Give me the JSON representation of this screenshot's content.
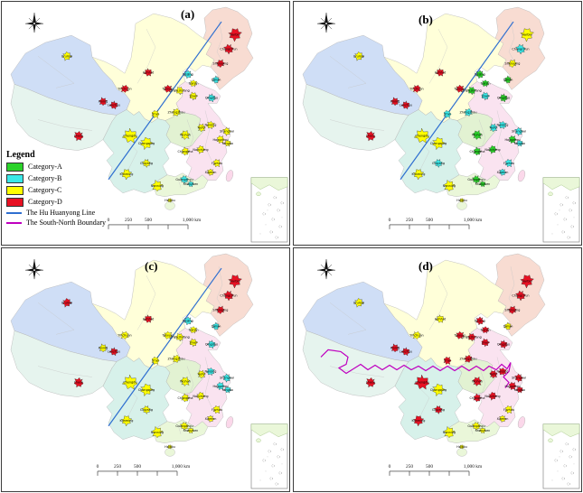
{
  "panels": [
    {
      "id": "a",
      "label": "(a)",
      "boundary_line": "hu_huanyong",
      "cities": {
        "Urumqi": "C",
        "Lhasa": "D",
        "Xining": "D",
        "Lanzhou": "D",
        "Yinchuan": "D",
        "Hohhot": "D",
        "Harbin": "D",
        "Changchun": "D",
        "Shenyang": "D",
        "Dalian": "B",
        "Beijing": "B",
        "Tianjin": "C",
        "Shijiazhuang": "C",
        "Taiyuan": "D",
        "Jinan": "C",
        "Qingdao": "B",
        "Zhengzhou": "C",
        "Xi'an": "C",
        "Chengdu": "C",
        "Chongqing": "C",
        "Wuhan": "C",
        "Hefei": "C",
        "Nanjing": "C",
        "Shanghai": "C",
        "Hangzhou": "C",
        "Ningbo": "C",
        "Nanchang": "C",
        "Changsha": "C",
        "Guiyang": "C",
        "Kunming": "C",
        "Nanning": "C",
        "Guangzhou": "B",
        "Shenzhen": "B",
        "Fuzhou": "C",
        "Xiamen": "C",
        "Haikou": "C"
      }
    },
    {
      "id": "b",
      "label": "(b)",
      "boundary_line": "hu_huanyong",
      "cities": {
        "Urumqi": "C",
        "Lhasa": "D",
        "Xining": "D",
        "Lanzhou": "D",
        "Yinchuan": "D",
        "Hohhot": "D",
        "Harbin": "C",
        "Changchun": "B",
        "Shenyang": "C",
        "Dalian": "A",
        "Beijing": "A",
        "Tianjin": "A",
        "Shijiazhuang": "A",
        "Taiyuan": "D",
        "Jinan": "B",
        "Qingdao": "A",
        "Zhengzhou": "B",
        "Xi'an": "B",
        "Chengdu": "C",
        "Chongqing": "C",
        "Wuhan": "A",
        "Hefei": "B",
        "Nanjing": "B",
        "Shanghai": "B",
        "Hangzhou": "A",
        "Ningbo": "B",
        "Nanchang": "A",
        "Changsha": "A",
        "Guiyang": "B",
        "Kunming": "C",
        "Nanning": "C",
        "Guangzhou": "A",
        "Shenzhen": "A",
        "Fuzhou": "B",
        "Xiamen": "B",
        "Haikou": "C"
      }
    },
    {
      "id": "c",
      "label": "(c)",
      "boundary_line": "hu_huanyong",
      "cities": {
        "Urumqi": "D",
        "Lhasa": "D",
        "Xining": "C",
        "Lanzhou": "D",
        "Yinchuan": "C",
        "Hohhot": "D",
        "Harbin": "D",
        "Changchun": "D",
        "Shenyang": "D",
        "Dalian": "B",
        "Beijing": "B",
        "Tianjin": "C",
        "Shijiazhuang": "C",
        "Taiyuan": "C",
        "Jinan": "C",
        "Qingdao": "B",
        "Zhengzhou": "C",
        "Xi'an": "C",
        "Chengdu": "C",
        "Chongqing": "C",
        "Wuhan": "C",
        "Hefei": "C",
        "Nanjing": "B",
        "Shanghai": "B",
        "Hangzhou": "B",
        "Ningbo": "B",
        "Nanchang": "C",
        "Changsha": "C",
        "Guiyang": "C",
        "Kunming": "C",
        "Nanning": "C",
        "Guangzhou": "C",
        "Shenzhen": "C",
        "Fuzhou": "C",
        "Xiamen": "C",
        "Haikou": "C"
      }
    },
    {
      "id": "d",
      "label": "(d)",
      "boundary_line": "south_north",
      "cities": {
        "Urumqi": "C",
        "Lhasa": "D",
        "Xining": "D",
        "Lanzhou": "D",
        "Yinchuan": "C",
        "Hohhot": "C",
        "Harbin": "D",
        "Changchun": "D",
        "Shenyang": "D",
        "Dalian": "C",
        "Beijing": "D",
        "Tianjin": "D",
        "Shijiazhuang": "D",
        "Taiyuan": "D",
        "Jinan": "D",
        "Qingdao": "D",
        "Zhengzhou": "D",
        "Xi'an": "D",
        "Chengdu": "D",
        "Chongqing": "C",
        "Wuhan": "D",
        "Hefei": "D",
        "Nanjing": "D",
        "Shanghai": "D",
        "Hangzhou": "D",
        "Ningbo": "D",
        "Nanchang": "D",
        "Changsha": "D",
        "Guiyang": "D",
        "Kunming": "D",
        "Nanning": "C",
        "Guangzhou": "C",
        "Shenzhen": "C",
        "Fuzhou": "C",
        "Xiamen": "C",
        "Haikou": "C"
      }
    }
  ],
  "legend": {
    "title": "Legend",
    "items": [
      {
        "label": "Category-A",
        "type": "swatch",
        "color": "#2bd32a"
      },
      {
        "label": "Category-B",
        "type": "swatch",
        "color": "#3ae8e8"
      },
      {
        "label": "Category-C",
        "type": "swatch",
        "color": "#ffff00"
      },
      {
        "label": "Category-D",
        "type": "swatch",
        "color": "#e81123"
      },
      {
        "label": "The Hu Huanyong Line",
        "type": "line",
        "color": "#2f6fd0"
      },
      {
        "label": "The South-North Boundary",
        "type": "line",
        "color": "#bf00bf"
      }
    ]
  },
  "categories": {
    "A": "#2bd32a",
    "B": "#3ae8e8",
    "C": "#ffff00",
    "D": "#e81123"
  },
  "lines": {
    "hu_huanyong": "#2f6fd0",
    "south_north": "#bf00bf"
  },
  "map_region_colors": {
    "xinjiang_qinghai": "#cfdef6",
    "tibet": "#e6f4ee",
    "north_yellow_band": "#ffffd9",
    "northeast": "#f8dcd2",
    "east_pink": "#fae3f0",
    "henan_hubei_green": "#e2f2d2",
    "southwest_mint": "#d7f1ea",
    "south_green": "#eaf7d9",
    "hainan_green": "#eaf7d9",
    "taiwan_pink": "#fbd8ea"
  },
  "scalebar": {
    "labels": [
      "0",
      "250",
      "500",
      "1,000 km"
    ]
  },
  "icons": {
    "north_arrow": "compass-rose"
  }
}
